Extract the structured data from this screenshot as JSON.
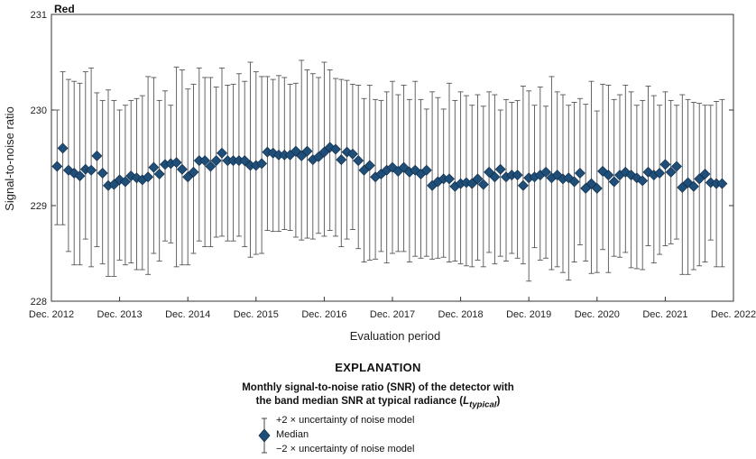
{
  "chart_data": {
    "type": "scatter",
    "panel_label": "Red",
    "xlabel": "Evaluation period",
    "ylabel": "Signal-to-noise ratio",
    "x_ticks": [
      "Dec. 2012",
      "Dec. 2013",
      "Dec. 2014",
      "Dec. 2015",
      "Dec. 2016",
      "Dec. 2017",
      "Dec. 2018",
      "Dec. 2019",
      "Dec. 2020",
      "Dec. 2021",
      "Dec. 2022"
    ],
    "y_ticks": [
      "228",
      "229",
      "230",
      "231"
    ],
    "ylim": [
      228,
      231
    ],
    "x_range_months": [
      0,
      120
    ],
    "grid": false,
    "series": [
      {
        "name": "Median",
        "marker": "diamond",
        "color": "#1f4e79",
        "x": [
          1,
          2,
          3,
          4,
          5,
          6,
          7,
          8,
          9,
          10,
          11,
          12,
          13,
          14,
          15,
          16,
          17,
          18,
          19,
          20,
          21,
          22,
          23,
          24,
          25,
          26,
          27,
          28,
          29,
          30,
          31,
          32,
          33,
          34,
          35,
          36,
          37,
          38,
          39,
          40,
          41,
          42,
          43,
          44,
          45,
          46,
          47,
          48,
          49,
          50,
          51,
          52,
          53,
          54,
          55,
          56,
          57,
          58,
          59,
          60,
          61,
          62,
          63,
          64,
          65,
          66,
          67,
          68,
          69,
          70,
          71,
          72,
          73,
          74,
          75,
          76,
          77,
          78,
          79,
          80,
          81,
          82,
          83,
          84,
          85,
          86,
          87,
          88,
          89,
          90,
          91,
          92,
          93,
          94,
          95,
          96,
          97,
          98,
          99,
          100,
          101,
          102,
          103,
          104,
          105,
          106,
          107,
          108,
          109,
          110,
          111,
          112,
          113,
          114,
          115,
          116,
          117,
          118
        ],
        "median": [
          229.41,
          229.6,
          229.37,
          229.34,
          229.31,
          229.38,
          229.37,
          229.52,
          229.34,
          229.21,
          229.22,
          229.27,
          229.25,
          229.31,
          229.29,
          229.27,
          229.3,
          229.4,
          229.33,
          229.43,
          229.44,
          229.45,
          229.38,
          229.3,
          229.35,
          229.47,
          229.47,
          229.41,
          229.47,
          229.55,
          229.47,
          229.47,
          229.47,
          229.47,
          229.42,
          229.42,
          229.44,
          229.56,
          229.55,
          229.53,
          229.53,
          229.53,
          229.57,
          229.52,
          229.57,
          229.48,
          229.51,
          229.56,
          229.61,
          229.59,
          229.48,
          229.56,
          229.54,
          229.47,
          229.37,
          229.42,
          229.3,
          229.33,
          229.37,
          229.4,
          229.36,
          229.4,
          229.35,
          229.37,
          229.33,
          229.37,
          229.21,
          229.25,
          229.28,
          229.28,
          229.2,
          229.23,
          229.24,
          229.23,
          229.28,
          229.22,
          229.35,
          229.3,
          229.38,
          229.3,
          229.32,
          229.32,
          229.21,
          229.29,
          229.3,
          229.32,
          229.35,
          229.29,
          229.32,
          229.28,
          229.29,
          229.25,
          229.34,
          229.18,
          229.23,
          229.18,
          229.36,
          229.32,
          229.25,
          229.32,
          229.35,
          229.32,
          229.29,
          229.26,
          229.35,
          229.32,
          229.34,
          229.43,
          229.35,
          229.41,
          229.19,
          229.24,
          229.2,
          229.28,
          229.33,
          229.24,
          229.23,
          229.23
        ],
        "plus_2_uncertainty": [
          230.0,
          230.4,
          230.32,
          230.3,
          230.28,
          230.4,
          230.44,
          230.18,
          230.1,
          230.21,
          230.1,
          230.0,
          230.05,
          230.1,
          230.12,
          230.15,
          230.35,
          230.34,
          230.1,
          230.2,
          230.05,
          230.45,
          230.42,
          230.22,
          230.27,
          230.44,
          230.34,
          230.34,
          230.24,
          230.44,
          230.26,
          230.27,
          230.38,
          230.3,
          230.5,
          230.4,
          230.35,
          230.35,
          230.32,
          230.36,
          230.34,
          230.27,
          230.28,
          230.52,
          230.42,
          230.38,
          230.34,
          230.5,
          230.42,
          230.33,
          230.32,
          230.31,
          230.27,
          230.26,
          230.12,
          230.26,
          230.11,
          230.1,
          230.19,
          230.3,
          230.16,
          230.26,
          230.11,
          230.3,
          230.11,
          230.01,
          230.19,
          230.13,
          230.01,
          230.28,
          230.1,
          230.19,
          230.15,
          230.05,
          230.16,
          230.04,
          230.19,
          230.16,
          230.0,
          230.11,
          230.08,
          230.1,
          230.25,
          230.2,
          230.05,
          230.24,
          230.04,
          230.35,
          230.19,
          230.16,
          230.05,
          230.08,
          230.12,
          230.06,
          230.3,
          229.99,
          230.27,
          230.26,
          230.11,
          230.16,
          230.26,
          230.19,
          230.05,
          230.1,
          230.25,
          230.15,
          230.05,
          230.19,
          230.1,
          230.05,
          230.16,
          230.11,
          230.08,
          230.07,
          230.05,
          230.05,
          230.09,
          230.11
        ],
        "minus_2_uncertainty": [
          228.8,
          228.8,
          228.52,
          228.38,
          228.38,
          228.65,
          228.36,
          228.57,
          228.39,
          228.26,
          228.26,
          228.43,
          228.38,
          228.4,
          228.33,
          228.33,
          228.28,
          228.5,
          228.42,
          228.63,
          228.61,
          228.36,
          228.38,
          228.38,
          228.5,
          228.63,
          228.57,
          228.57,
          228.67,
          228.68,
          228.63,
          228.63,
          228.68,
          228.57,
          228.46,
          228.49,
          228.5,
          228.74,
          228.73,
          228.73,
          228.75,
          228.74,
          228.67,
          228.64,
          228.66,
          228.65,
          228.71,
          228.68,
          228.74,
          228.68,
          228.57,
          228.65,
          228.75,
          228.55,
          228.41,
          228.43,
          228.44,
          228.52,
          228.4,
          228.5,
          228.52,
          228.52,
          228.41,
          228.47,
          228.45,
          228.47,
          228.44,
          228.45,
          228.46,
          228.41,
          228.42,
          228.39,
          228.37,
          228.36,
          228.43,
          228.36,
          228.51,
          228.39,
          228.47,
          228.42,
          228.5,
          228.45,
          228.39,
          228.21,
          228.56,
          228.43,
          228.45,
          228.33,
          228.36,
          228.3,
          228.22,
          228.41,
          228.59,
          228.42,
          228.29,
          228.3,
          228.54,
          228.3,
          228.47,
          228.46,
          228.51,
          228.35,
          228.34,
          228.33,
          228.58,
          228.4,
          228.49,
          228.58,
          228.6,
          228.65,
          228.28,
          228.28,
          228.33,
          228.37,
          228.41,
          228.64,
          228.36,
          228.36
        ]
      }
    ]
  },
  "explanation": {
    "title": "EXPLANATION",
    "subtitle_line1": "Monthly signal-to-noise ratio (SNR) of the detector with",
    "subtitle_line2": "the band median SNR at typical radiance (",
    "subtitle_symbol": "L",
    "subtitle_subscript": "typical",
    "subtitle_close": ")",
    "legend_upper": "+2 × uncertainty of noise model",
    "legend_median": "Median",
    "legend_lower": "−2 × uncertainty of noise model"
  }
}
